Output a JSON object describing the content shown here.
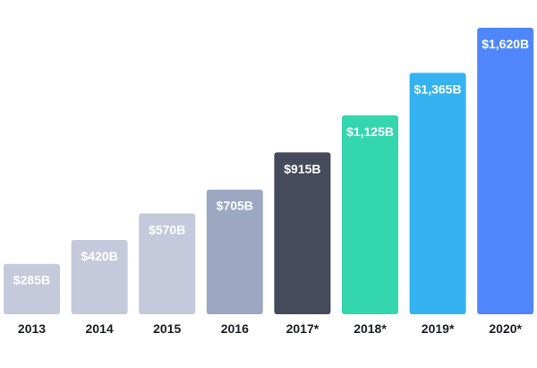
{
  "chart_data": {
    "type": "bar",
    "categories": [
      "2013",
      "2014",
      "2015",
      "2016",
      "2017*",
      "2018*",
      "2019*",
      "2020*"
    ],
    "values": [
      285,
      420,
      570,
      705,
      915,
      1125,
      1365,
      1620
    ],
    "value_labels": [
      "$285B",
      "$420B",
      "$570B",
      "$705B",
      "$915B",
      "$1,125B",
      "$1,365B",
      "$1,620B"
    ],
    "colors": [
      "#c4cadc",
      "#c4cadc",
      "#c4cadc",
      "#9ca8c2",
      "#454b5b",
      "#33d6ad",
      "#35b3f1",
      "#4f87fa"
    ],
    "title": "",
    "xlabel": "",
    "ylabel": "",
    "ylim": [
      0,
      1620
    ],
    "grid": false,
    "legend": "none"
  }
}
